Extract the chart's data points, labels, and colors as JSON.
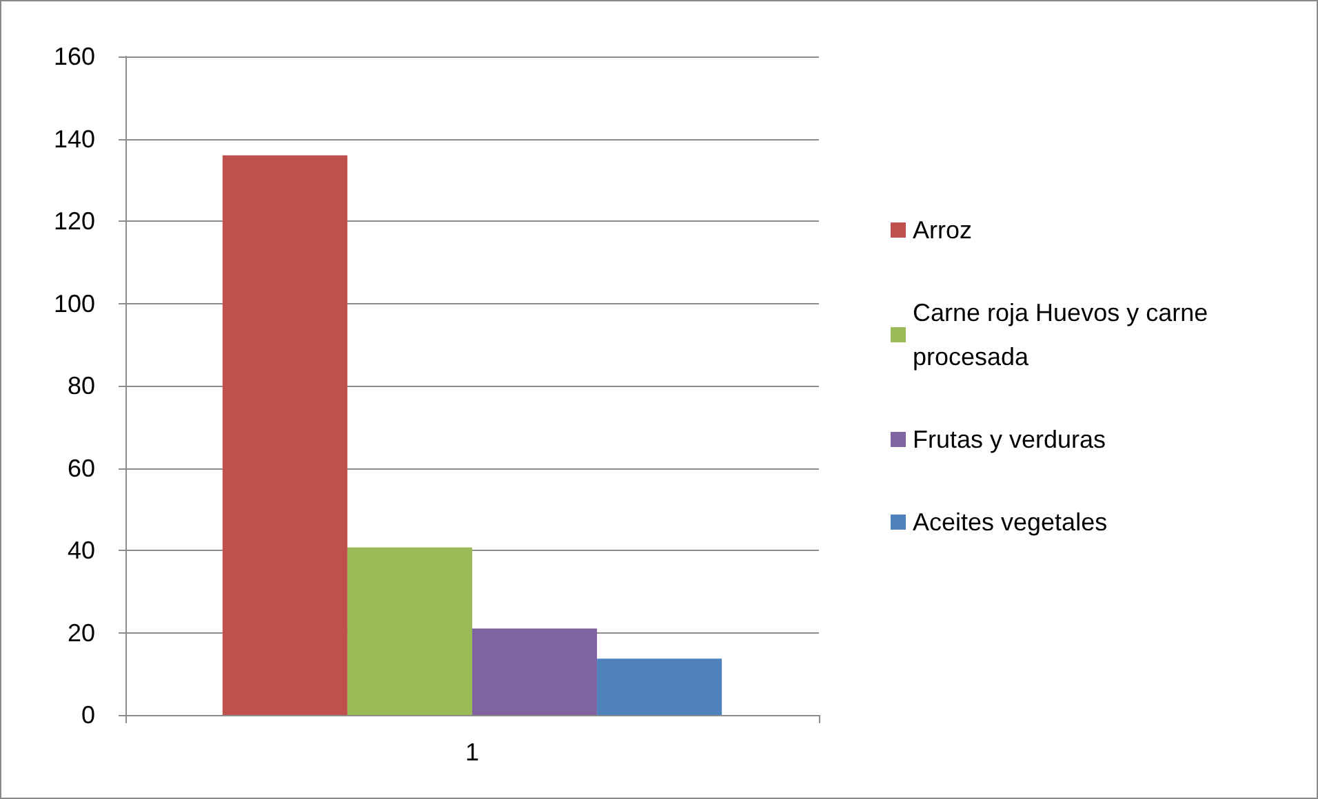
{
  "chart_data": {
    "type": "bar",
    "categories": [
      "1"
    ],
    "series": [
      {
        "name": "Arroz",
        "color": "#c0504d",
        "values": [
          136
        ]
      },
      {
        "name": "Carne roja Huevos y carne procesada",
        "color": "#9bbb59",
        "values": [
          40.7
        ]
      },
      {
        "name": "Frutas y verduras",
        "color": "#8064a2",
        "values": [
          21
        ]
      },
      {
        "name": "Aceites vegetales",
        "color": "#4f81bd",
        "values": [
          13.7
        ]
      }
    ],
    "ylim": [
      0,
      160
    ],
    "yticks": [
      0,
      20,
      40,
      60,
      80,
      100,
      120,
      140,
      160
    ],
    "grid": "y",
    "legend": "right"
  }
}
